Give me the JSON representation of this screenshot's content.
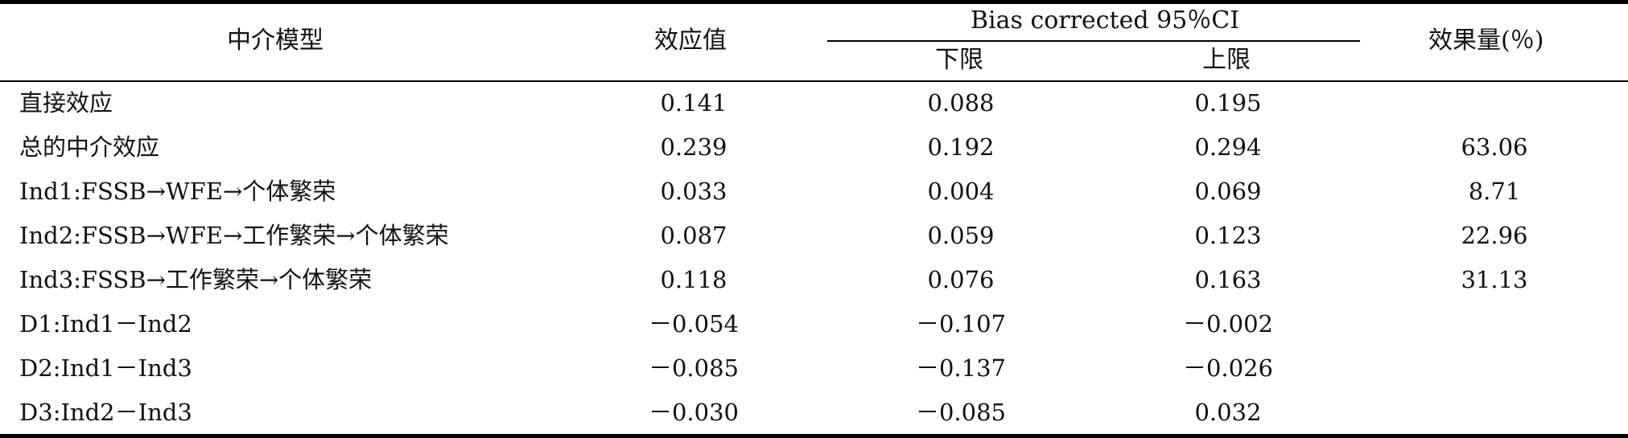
{
  "table": {
    "headers": {
      "model": "中介模型",
      "effect": "效应值",
      "ci": "Bias corrected 95％CI",
      "lower": "下限",
      "upper": "上限",
      "size": "效果量(％)"
    },
    "rows": [
      {
        "model": "直接效应",
        "effect": "0.141",
        "lower": "0.088",
        "upper": "0.195",
        "size": ""
      },
      {
        "model": "总的中介效应",
        "effect": "0.239",
        "lower": "0.192",
        "upper": "0.294",
        "size": "63.06"
      },
      {
        "model": "Ind1:FSSB→WFE→个体繁荣",
        "effect": "0.033",
        "lower": "0.004",
        "upper": "0.069",
        "size": "8.71"
      },
      {
        "model": "Ind2:FSSB→WFE→工作繁荣→个体繁荣",
        "effect": "0.087",
        "lower": "0.059",
        "upper": "0.123",
        "size": "22.96"
      },
      {
        "model": "Ind3:FSSB→工作繁荣→个体繁荣",
        "effect": "0.118",
        "lower": "0.076",
        "upper": "0.163",
        "size": "31.13"
      },
      {
        "model": "D1:Ind1－Ind2",
        "effect": "－0.054",
        "lower": "－0.107",
        "upper": "－0.002",
        "size": ""
      },
      {
        "model": "D2:Ind1－Ind3",
        "effect": "－0.085",
        "lower": "－0.137",
        "upper": "－0.026",
        "size": ""
      },
      {
        "model": "D3:Ind2－Ind3",
        "effect": "－0.030",
        "lower": "－0.085",
        "upper": "0.032",
        "size": ""
      }
    ]
  }
}
